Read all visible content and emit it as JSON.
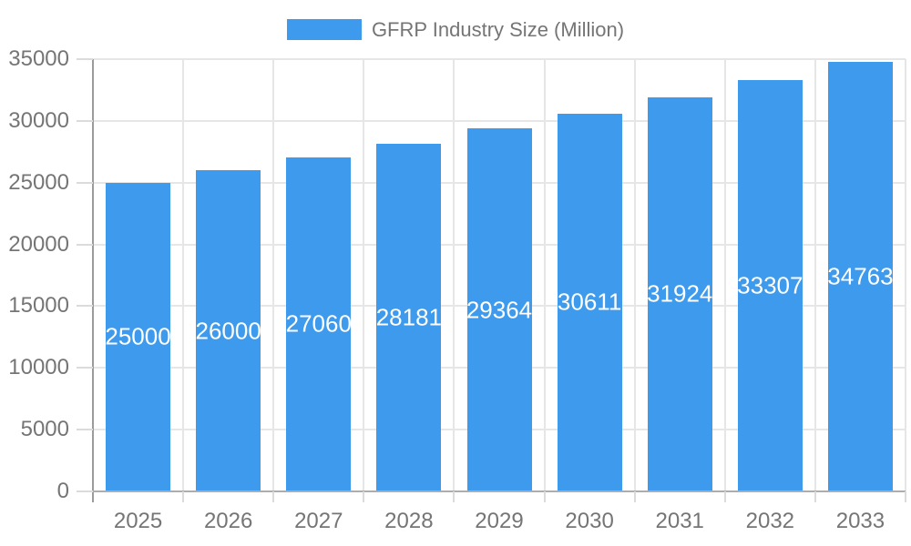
{
  "legend": {
    "label": "GFRP Industry Size (Million)"
  },
  "chart_data": {
    "type": "bar",
    "title": "",
    "xlabel": "",
    "ylabel": "",
    "categories": [
      "2025",
      "2026",
      "2027",
      "2028",
      "2029",
      "2030",
      "2031",
      "2032",
      "2033"
    ],
    "series": [
      {
        "name": "GFRP Industry Size (Million)",
        "values": [
          25000,
          26000,
          27060,
          28181,
          29364,
          30611,
          31924,
          33307,
          34763
        ]
      }
    ],
    "value_labels": [
      "25000",
      "26000",
      "27060",
      "28181",
      "29364",
      "30611",
      "31924",
      "33307",
      "34763"
    ],
    "ytick_labels": [
      "0",
      "5000",
      "10000",
      "15000",
      "20000",
      "25000",
      "30000",
      "35000"
    ],
    "ylim": [
      0,
      35000
    ],
    "ytick_step": 5000,
    "grid": true,
    "legend_position": "top",
    "colors": {
      "bar": "#3D9AEC",
      "value_label": "#FFFFFF",
      "axis_text": "#757575",
      "gridline": "#E6E6E6",
      "tick": "#DBDBDB",
      "axis_line_y": "#9B9B9B",
      "axis_line_x": "#ADADAD",
      "background": "#FFFFFF"
    }
  }
}
